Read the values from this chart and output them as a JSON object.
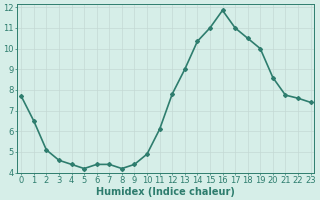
{
  "x": [
    0,
    1,
    2,
    3,
    4,
    5,
    6,
    7,
    8,
    9,
    10,
    11,
    12,
    13,
    14,
    15,
    16,
    17,
    18,
    19,
    20,
    21,
    22,
    23
  ],
  "y": [
    7.7,
    6.5,
    5.1,
    4.6,
    4.4,
    4.2,
    4.4,
    4.4,
    4.2,
    4.4,
    4.9,
    6.1,
    7.8,
    9.0,
    10.35,
    11.0,
    11.85,
    11.0,
    10.5,
    10.0,
    8.6,
    7.75,
    7.6,
    7.4
  ],
  "line_color": "#2e7d6e",
  "marker": "D",
  "marker_size": 2.0,
  "bg_color": "#d6eee8",
  "grid_color": "#c4d9d4",
  "xlabel": "Humidex (Indice chaleur)",
  "ylabel": "",
  "xlim": [
    0,
    23
  ],
  "ylim": [
    4,
    12
  ],
  "yticks": [
    4,
    5,
    6,
    7,
    8,
    9,
    10,
    11,
    12
  ],
  "xticks": [
    0,
    1,
    2,
    3,
    4,
    5,
    6,
    7,
    8,
    9,
    10,
    11,
    12,
    13,
    14,
    15,
    16,
    17,
    18,
    19,
    20,
    21,
    22,
    23
  ],
  "xlabel_fontsize": 7.0,
  "tick_fontsize": 6.0,
  "line_width": 1.2
}
